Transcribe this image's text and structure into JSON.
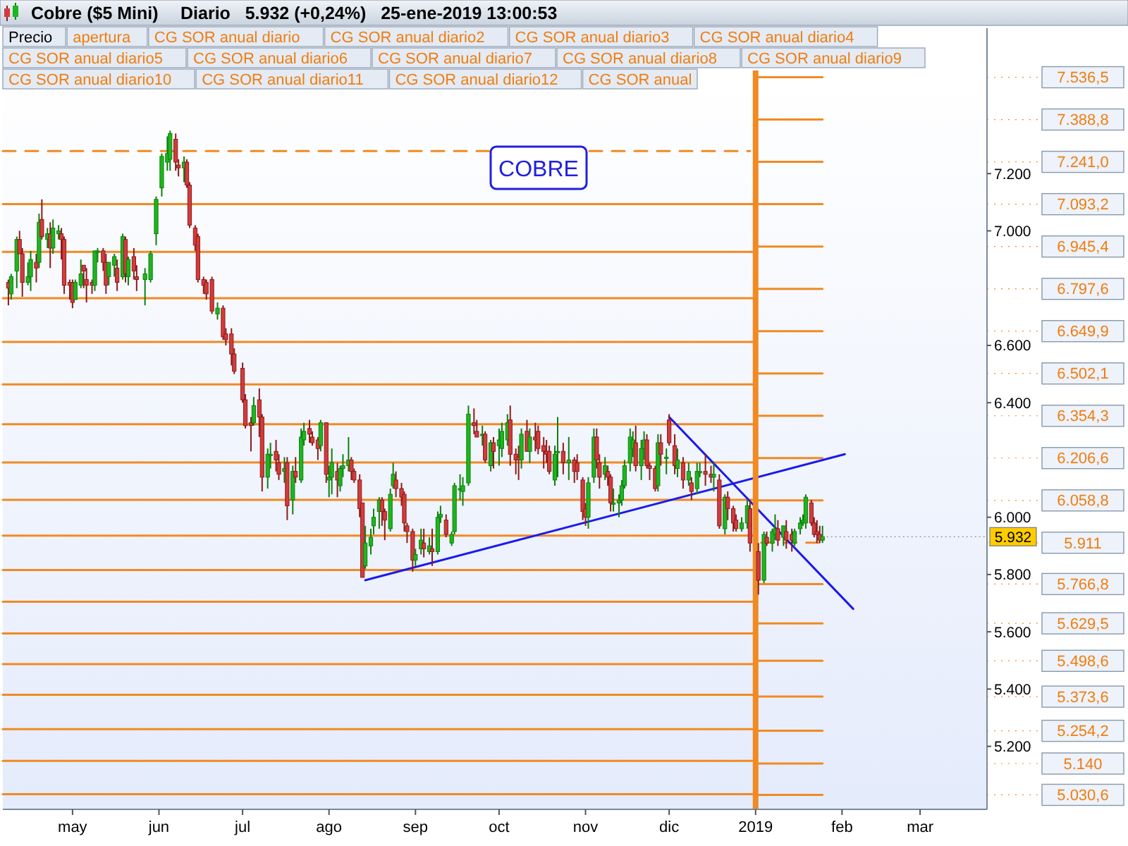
{
  "chart_data": {
    "type": "candlestick",
    "title": "Cobre ($5 Mini)",
    "subtitle": "Diario   5.932 (+0,24%)   25-ene-2019 13:00:53",
    "x": [
      "2018-04-08",
      "2018-04-09",
      "2018-04-11",
      "2018-04-12",
      "2018-04-13",
      "2018-04-15",
      "2018-04-16",
      "2018-04-18",
      "2018-04-19",
      "2018-04-20",
      "2018-04-22",
      "2018-04-23",
      "2018-04-24",
      "2018-04-26",
      "2018-04-27",
      "2018-04-28",
      "2018-04-30",
      "2018-05-01",
      "2018-05-02",
      "2018-05-04",
      "2018-05-05",
      "2018-05-06",
      "2018-05-08",
      "2018-05-09",
      "2018-05-10",
      "2018-05-12",
      "2018-05-13",
      "2018-05-14",
      "2018-05-16",
      "2018-05-17",
      "2018-05-19",
      "2018-05-20",
      "2018-05-21",
      "2018-05-23",
      "2018-05-24",
      "2018-05-27",
      "2018-05-29",
      "2018-05-31",
      "2018-06-02",
      "2018-06-04",
      "2018-06-05",
      "2018-06-07",
      "2018-06-08",
      "2018-06-10",
      "2018-06-11",
      "2018-06-12",
      "2018-06-14",
      "2018-06-15",
      "2018-06-17",
      "2018-06-18",
      "2018-06-20",
      "2018-06-22",
      "2018-06-24",
      "2018-06-25",
      "2018-06-27",
      "2018-06-28",
      "2018-07-01",
      "2018-07-02",
      "2018-07-04",
      "2018-07-05",
      "2018-07-07",
      "2018-07-08",
      "2018-07-10",
      "2018-07-11",
      "2018-07-13",
      "2018-07-14",
      "2018-07-16",
      "2018-07-17",
      "2018-07-19",
      "2018-07-20",
      "2018-07-22",
      "2018-07-23",
      "2018-07-25",
      "2018-07-26",
      "2018-07-28",
      "2018-07-29",
      "2018-07-31",
      "2018-08-01",
      "2018-08-02",
      "2018-08-04",
      "2018-08-05",
      "2018-08-06",
      "2018-08-08",
      "2018-08-09",
      "2018-08-10",
      "2018-08-12",
      "2018-08-13",
      "2018-08-14",
      "2018-08-16",
      "2018-08-17",
      "2018-08-19",
      "2018-08-20",
      "2018-08-21",
      "2018-08-23",
      "2018-08-24",
      "2018-08-25",
      "2018-08-27",
      "2018-08-28",
      "2018-08-29",
      "2018-08-31",
      "2018-09-01",
      "2018-09-03",
      "2018-09-04",
      "2018-09-06",
      "2018-09-07",
      "2018-09-09",
      "2018-09-10",
      "2018-09-12",
      "2018-09-14",
      "2018-09-15",
      "2018-09-17",
      "2018-09-18",
      "2018-09-20",
      "2018-09-22",
      "2018-09-23",
      "2018-09-25",
      "2018-09-26",
      "2018-09-28",
      "2018-09-29",
      "2018-10-01",
      "2018-10-02",
      "2018-10-04",
      "2018-10-05",
      "2018-10-07",
      "2018-10-08",
      "2018-10-09",
      "2018-10-11",
      "2018-10-12",
      "2018-10-14",
      "2018-10-15",
      "2018-10-17",
      "2018-10-18",
      "2018-10-19",
      "2018-10-21",
      "2018-10-22",
      "2018-10-24",
      "2018-10-26",
      "2018-10-28",
      "2018-10-29",
      "2018-10-31",
      "2018-11-01",
      "2018-11-02",
      "2018-11-04",
      "2018-11-05",
      "2018-11-06",
      "2018-11-08",
      "2018-11-09",
      "2018-11-10",
      "2018-11-11",
      "2018-11-13",
      "2018-11-14",
      "2018-11-15",
      "2018-11-17",
      "2018-11-18",
      "2018-11-19",
      "2018-11-21",
      "2018-11-22",
      "2018-11-23",
      "2018-11-24",
      "2018-11-26",
      "2018-11-27",
      "2018-11-28",
      "2018-11-30",
      "2018-12-01",
      "2018-12-03",
      "2018-12-04",
      "2018-12-06",
      "2018-12-08",
      "2018-12-09",
      "2018-12-11",
      "2018-12-12",
      "2018-12-14",
      "2018-12-16",
      "2018-12-17",
      "2018-12-19",
      "2018-12-21",
      "2018-12-22",
      "2018-12-24",
      "2018-12-25",
      "2018-12-27",
      "2018-12-29",
      "2018-12-30",
      "2019-01-02",
      "2019-01-04",
      "2019-01-05",
      "2019-01-07",
      "2019-01-08",
      "2019-01-09",
      "2019-01-11",
      "2019-01-12",
      "2019-01-14",
      "2019-01-15",
      "2019-01-17",
      "2019-01-18",
      "2019-01-19",
      "2019-01-21",
      "2019-01-22",
      "2019-01-23",
      "2019-01-24",
      "2019-01-25"
    ],
    "ohlc": [
      [
        6820,
        6830,
        6740,
        6800
      ],
      [
        6780,
        6850,
        6760,
        6840
      ],
      [
        6860,
        6980,
        6800,
        6970
      ],
      [
        6970,
        7000,
        6920,
        6920
      ],
      [
        6920,
        6940,
        6770,
        6820
      ],
      [
        6820,
        6890,
        6810,
        6840
      ],
      [
        6840,
        6930,
        6790,
        6900
      ],
      [
        6890,
        6920,
        6820,
        6870
      ],
      [
        6890,
        7060,
        6870,
        7030
      ],
      [
        7040,
        7110,
        6970,
        6980
      ],
      [
        6970,
        7010,
        6940,
        6990
      ],
      [
        6990,
        7030,
        6870,
        6940
      ],
      [
        6940,
        7040,
        6920,
        7010
      ],
      [
        6990,
        7020,
        6970,
        7000
      ],
      [
        6990,
        7010,
        6900,
        6970
      ],
      [
        6970,
        6980,
        6780,
        6810
      ],
      [
        6820,
        6830,
        6760,
        6810
      ],
      [
        6820,
        6830,
        6730,
        6750
      ],
      [
        6760,
        6830,
        6760,
        6820
      ],
      [
        6810,
        6900,
        6800,
        6850
      ],
      [
        6880,
        6880,
        6800,
        6860
      ],
      [
        6830,
        6870,
        6750,
        6810
      ],
      [
        6820,
        6830,
        6780,
        6810
      ],
      [
        6810,
        6930,
        6790,
        6930
      ],
      [
        6930,
        6940,
        6890,
        6930
      ],
      [
        6930,
        6940,
        6860,
        6890
      ],
      [
        6890,
        6920,
        6780,
        6810
      ],
      [
        6840,
        6890,
        6810,
        6890
      ],
      [
        6880,
        6920,
        6840,
        6910
      ],
      [
        6870,
        6900,
        6790,
        6820
      ],
      [
        6840,
        6990,
        6830,
        6980
      ],
      [
        6970,
        6980,
        6820,
        6850
      ],
      [
        6840,
        6910,
        6810,
        6900
      ],
      [
        6910,
        6940,
        6830,
        6860
      ],
      [
        6840,
        6880,
        6790,
        6830
      ],
      [
        6830,
        6870,
        6740,
        6850
      ],
      [
        6830,
        6930,
        6820,
        6920
      ],
      [
        6990,
        7120,
        6950,
        7110
      ],
      [
        7150,
        7270,
        7120,
        7260
      ],
      [
        7240,
        7330,
        7210,
        7270
      ],
      [
        7250,
        7350,
        7210,
        7340
      ],
      [
        7320,
        7340,
        7210,
        7240
      ],
      [
        7230,
        7250,
        7190,
        7220
      ],
      [
        7220,
        7260,
        7170,
        7240
      ],
      [
        7240,
        7250,
        7150,
        7160
      ],
      [
        7160,
        7170,
        7010,
        7020
      ],
      [
        7010,
        7020,
        6930,
        6950
      ],
      [
        6980,
        6990,
        6820,
        6830
      ],
      [
        6830,
        6840,
        6780,
        6810
      ],
      [
        6820,
        6830,
        6760,
        6780
      ],
      [
        6830,
        6840,
        6710,
        6720
      ],
      [
        6710,
        6750,
        6690,
        6730
      ],
      [
        6730,
        6740,
        6620,
        6630
      ],
      [
        6640,
        6660,
        6600,
        6620
      ],
      [
        6640,
        6660,
        6530,
        6570
      ],
      [
        6570,
        6590,
        6500,
        6510
      ],
      [
        6520,
        6540,
        6400,
        6410
      ],
      [
        6410,
        6430,
        6310,
        6320
      ],
      [
        6330,
        6350,
        6230,
        6320
      ],
      [
        6330,
        6420,
        6320,
        6390
      ],
      [
        6410,
        6450,
        6280,
        6350
      ],
      [
        6350,
        6360,
        6090,
        6140
      ],
      [
        6140,
        6240,
        6100,
        6220
      ],
      [
        6220,
        6260,
        6170,
        6220
      ],
      [
        6230,
        6270,
        6160,
        6200
      ],
      [
        6190,
        6220,
        6130,
        6150
      ],
      [
        6160,
        6210,
        6120,
        6170
      ],
      [
        6190,
        6210,
        5990,
        6040
      ],
      [
        6060,
        6180,
        6010,
        6160
      ],
      [
        6160,
        6210,
        6120,
        6140
      ],
      [
        6130,
        6310,
        6120,
        6280
      ],
      [
        6270,
        6330,
        6250,
        6300
      ],
      [
        6310,
        6340,
        6260,
        6290
      ],
      [
        6280,
        6300,
        6250,
        6260
      ],
      [
        6270,
        6280,
        6200,
        6240
      ],
      [
        6250,
        6340,
        6230,
        6330
      ],
      [
        6330,
        6330,
        6120,
        6150
      ],
      [
        6130,
        6180,
        6070,
        6140
      ],
      [
        6140,
        6240,
        6080,
        6190
      ],
      [
        6160,
        6190,
        6070,
        6130
      ],
      [
        6110,
        6180,
        6090,
        6170
      ],
      [
        6170,
        6220,
        6140,
        6180
      ],
      [
        6180,
        6280,
        6160,
        6200
      ],
      [
        6200,
        6210,
        6130,
        6160
      ],
      [
        6160,
        6170,
        6120,
        6130
      ],
      [
        6130,
        6150,
        6000,
        6030
      ],
      [
        6050,
        6050,
        5790,
        5790
      ],
      [
        5830,
        5970,
        5820,
        5910
      ],
      [
        5900,
        5960,
        5870,
        5930
      ],
      [
        5970,
        6030,
        5940,
        6000
      ],
      [
        6020,
        6070,
        5960,
        6060
      ],
      [
        6060,
        6070,
        5970,
        6020
      ],
      [
        6020,
        6030,
        5920,
        5990
      ],
      [
        5960,
        6100,
        5950,
        6080
      ],
      [
        6110,
        6190,
        6100,
        6150
      ],
      [
        6130,
        6160,
        6070,
        6100
      ],
      [
        6100,
        6120,
        6040,
        6070
      ],
      [
        6080,
        6090,
        5950,
        5980
      ],
      [
        5970,
        5980,
        5910,
        5950
      ],
      [
        5950,
        5960,
        5810,
        5850
      ],
      [
        5850,
        5890,
        5830,
        5870
      ],
      [
        5890,
        5960,
        5870,
        5920
      ],
      [
        5910,
        5960,
        5860,
        5890
      ],
      [
        5880,
        5930,
        5870,
        5900
      ],
      [
        5890,
        5960,
        5830,
        5880
      ],
      [
        5880,
        6020,
        5870,
        6000
      ],
      [
        6000,
        6040,
        5980,
        6010
      ],
      [
        5990,
        6010,
        5930,
        5940
      ],
      [
        5910,
        5950,
        5900,
        5940
      ],
      [
        5950,
        6120,
        5940,
        6110
      ],
      [
        6100,
        6150,
        6060,
        6100
      ],
      [
        6090,
        6140,
        6040,
        6110
      ],
      [
        6120,
        6390,
        6110,
        6360
      ],
      [
        6330,
        6380,
        6290,
        6320
      ],
      [
        6300,
        6340,
        6280,
        6280
      ],
      [
        6290,
        6320,
        6250,
        6290
      ],
      [
        6290,
        6300,
        6190,
        6200
      ],
      [
        6180,
        6270,
        6160,
        6260
      ],
      [
        6260,
        6280,
        6170,
        6230
      ],
      [
        6250,
        6310,
        6180,
        6270
      ],
      [
        6240,
        6330,
        6210,
        6300
      ],
      [
        6270,
        6360,
        6250,
        6330
      ],
      [
        6340,
        6390,
        6180,
        6220
      ],
      [
        6220,
        6240,
        6150,
        6200
      ],
      [
        6210,
        6250,
        6130,
        6200
      ],
      [
        6200,
        6310,
        6170,
        6290
      ],
      [
        6300,
        6340,
        6230,
        6230
      ],
      [
        6230,
        6310,
        6190,
        6280
      ],
      [
        6280,
        6330,
        6230,
        6270
      ],
      [
        6300,
        6320,
        6220,
        6240
      ],
      [
        6250,
        6280,
        6170,
        6230
      ],
      [
        6230,
        6270,
        6190,
        6220
      ],
      [
        6230,
        6250,
        6150,
        6160
      ],
      [
        6130,
        6250,
        6110,
        6220
      ],
      [
        6230,
        6350,
        6140,
        6230
      ],
      [
        6230,
        6260,
        6150,
        6190
      ],
      [
        6190,
        6280,
        6130,
        6200
      ],
      [
        6200,
        6210,
        6120,
        6160
      ],
      [
        6190,
        6220,
        6130,
        6160
      ],
      [
        6130,
        6140,
        5990,
        6020
      ],
      [
        6030,
        6050,
        5970,
        6000
      ],
      [
        6000,
        6140,
        5960,
        6120
      ],
      [
        6140,
        6310,
        6120,
        6280
      ],
      [
        6280,
        6310,
        6170,
        6200
      ],
      [
        6190,
        6220,
        6100,
        6140
      ],
      [
        6150,
        6210,
        6130,
        6180
      ],
      [
        6160,
        6180,
        6110,
        6140
      ],
      [
        6140,
        6150,
        6020,
        6050
      ],
      [
        6050,
        6100,
        6020,
        6050
      ],
      [
        6050,
        6080,
        6000,
        6060
      ],
      [
        6060,
        6130,
        6040,
        6110
      ],
      [
        6110,
        6200,
        6100,
        6180
      ],
      [
        6190,
        6310,
        6160,
        6280
      ],
      [
        6240,
        6300,
        6210,
        6270
      ],
      [
        6260,
        6320,
        6160,
        6180
      ],
      [
        6180,
        6270,
        6130,
        6240
      ],
      [
        6240,
        6300,
        6200,
        6270
      ],
      [
        6270,
        6290,
        6170,
        6180
      ],
      [
        6180,
        6190,
        6130,
        6170
      ],
      [
        6170,
        6180,
        6090,
        6100
      ],
      [
        6110,
        6290,
        6090,
        6260
      ],
      [
        6260,
        6290,
        6180,
        6220
      ],
      [
        6210,
        6240,
        6150,
        6210
      ],
      [
        6340,
        6360,
        6250,
        6260
      ],
      [
        6250,
        6290,
        6150,
        6180
      ],
      [
        6170,
        6240,
        6140,
        6200
      ],
      [
        6190,
        6210,
        6100,
        6130
      ],
      [
        6130,
        6190,
        6110,
        6160
      ],
      [
        6120,
        6140,
        6060,
        6090
      ],
      [
        6100,
        6190,
        6080,
        6160
      ],
      [
        6160,
        6190,
        6140,
        6160
      ],
      [
        6160,
        6220,
        6110,
        6150
      ],
      [
        6150,
        6180,
        6120,
        6140
      ],
      [
        6140,
        6190,
        6090,
        6150
      ],
      [
        6130,
        6150,
        5960,
        5970
      ],
      [
        5960,
        6080,
        5940,
        6070
      ],
      [
        6070,
        6090,
        5990,
        6030
      ],
      [
        6030,
        6040,
        5950,
        5980
      ],
      [
        5990,
        6010,
        5950,
        5960
      ],
      [
        5960,
        6000,
        5950,
        5980
      ],
      [
        5980,
        6060,
        5960,
        6040
      ],
      [
        6030,
        6060,
        5880,
        5910
      ],
      [
        5880,
        5910,
        5730,
        5780
      ],
      [
        5780,
        5950,
        5770,
        5940
      ],
      [
        5930,
        5950,
        5900,
        5910
      ],
      [
        5910,
        5960,
        5880,
        5950
      ],
      [
        5940,
        6010,
        5920,
        5960
      ],
      [
        5960,
        5990,
        5900,
        5920
      ],
      [
        5930,
        5970,
        5900,
        5970
      ],
      [
        5950,
        5990,
        5890,
        5920
      ],
      [
        5940,
        5960,
        5880,
        5920
      ],
      [
        5910,
        5960,
        5900,
        5950
      ],
      [
        5960,
        6000,
        5940,
        5980
      ],
      [
        5980,
        6010,
        5970,
        5990
      ],
      [
        5980,
        6080,
        5960,
        6070
      ],
      [
        6050,
        6060,
        5970,
        5980
      ],
      [
        5980,
        6000,
        5930,
        5940
      ],
      [
        5950,
        5990,
        5910,
        5940
      ],
      [
        5940,
        5970,
        5910,
        5920
      ],
      [
        5920,
        5970,
        5910,
        5932
      ]
    ],
    "xlim": [
      "2018-04-06",
      "2019-03-25"
    ],
    "xticks": [
      {
        "value": "2018-05-01",
        "label": "may"
      },
      {
        "value": "2018-06-01",
        "label": "jun"
      },
      {
        "value": "2018-07-01",
        "label": "jul"
      },
      {
        "value": "2018-08-01",
        "label": "ago"
      },
      {
        "value": "2018-09-01",
        "label": "sep"
      },
      {
        "value": "2018-10-01",
        "label": "oct"
      },
      {
        "value": "2018-11-01",
        "label": "nov"
      },
      {
        "value": "2018-12-01",
        "label": "dic"
      },
      {
        "value": "2019-01-01",
        "label": "2019"
      },
      {
        "value": "2019-02-01",
        "label": "feb"
      },
      {
        "value": "2019-03-01",
        "label": "mar"
      }
    ],
    "ylim": [
      4980,
      7560
    ],
    "yticks": [
      {
        "value": 7200,
        "label": "7.200"
      },
      {
        "value": 7000,
        "label": "7.000"
      },
      {
        "value": 6600,
        "label": "6.600"
      },
      {
        "value": 6400,
        "label": "6.400"
      },
      {
        "value": 6000,
        "label": "6.000"
      },
      {
        "value": 5800,
        "label": "5.800"
      },
      {
        "value": 5600,
        "label": "5.600"
      },
      {
        "value": 5400,
        "label": "5.400"
      },
      {
        "value": 5200,
        "label": "5.200"
      }
    ],
    "y2lim": [
      4980,
      7560
    ],
    "y2ticks": [
      {
        "value": 7536.5,
        "label": "7.536,5"
      },
      {
        "value": 7388.8,
        "label": "7.388,8"
      },
      {
        "value": 7241,
        "label": "7.241,0"
      },
      {
        "value": 7093.2,
        "label": "7.093,2"
      },
      {
        "value": 6945.4,
        "label": "6.945,4"
      },
      {
        "value": 6797.6,
        "label": "6.797,6"
      },
      {
        "value": 6649.9,
        "label": "6.649,9"
      },
      {
        "value": 6502.1,
        "label": "6.502,1"
      },
      {
        "value": 6354.3,
        "label": "6.354,3"
      },
      {
        "value": 6206.6,
        "label": "6.206,6"
      },
      {
        "value": 6058.8,
        "label": "6.058,8"
      },
      {
        "value": 5911,
        "label": "5.911"
      },
      {
        "value": 5766.8,
        "label": "5.766,8"
      },
      {
        "value": 5629.5,
        "label": "5.629,5"
      },
      {
        "value": 5498.6,
        "label": "5.498,6"
      },
      {
        "value": 5373.6,
        "label": "5.373,6"
      },
      {
        "value": 5254.2,
        "label": "5.254,2"
      },
      {
        "value": 5140,
        "label": "5.140"
      },
      {
        "value": 5030.6,
        "label": "5.030,6"
      }
    ],
    "series": [
      {
        "type": "line",
        "color": "#f08a24",
        "line_style": "dashed",
        "x": [
          "2018-04-06",
          "2018-12-30"
        ],
        "values": [
          7279,
          7279
        ]
      },
      {
        "type": "line",
        "color": "#f08a24",
        "x": [
          "2018-04-06",
          "2018-12-31"
        ],
        "values": [
          6927,
          6927
        ]
      },
      {
        "type": "line",
        "color": "#f08a24",
        "x": [
          "2018-04-06",
          "2018-12-31"
        ],
        "values": [
          6765,
          6765
        ]
      },
      {
        "type": "line",
        "color": "#f08a24",
        "x": [
          "2018-04-06",
          "2018-12-31"
        ],
        "values": [
          6612,
          6612
        ]
      },
      {
        "type": "line",
        "color": "#f08a24",
        "x": [
          "2018-04-06",
          "2018-12-31"
        ],
        "values": [
          6464,
          6464
        ]
      },
      {
        "type": "line",
        "color": "#f08a24",
        "x": [
          "2018-04-06",
          "2018-12-31"
        ],
        "values": [
          6325,
          6325
        ]
      },
      {
        "type": "line",
        "color": "#f08a24",
        "x": [
          "2018-04-06",
          "2018-12-31"
        ],
        "values": [
          6191,
          6191
        ]
      },
      {
        "type": "line",
        "color": "#f08a24",
        "x": [
          "2018-04-06",
          "2018-12-31"
        ],
        "values": [
          6061,
          6061
        ]
      },
      {
        "type": "line",
        "color": "#f08a24",
        "x": [
          "2018-04-06",
          "2018-12-31"
        ],
        "values": [
          5936,
          5936
        ]
      },
      {
        "type": "line",
        "color": "#f08a24",
        "x": [
          "2018-04-06",
          "2018-12-31"
        ],
        "values": [
          5816,
          5816
        ]
      },
      {
        "type": "line",
        "color": "#f08a24",
        "x": [
          "2018-04-06",
          "2018-12-31"
        ],
        "values": [
          5705,
          5705
        ]
      },
      {
        "type": "line",
        "color": "#f08a24",
        "x": [
          "2018-04-06",
          "2018-12-31"
        ],
        "values": [
          5594,
          5594
        ]
      },
      {
        "type": "line",
        "color": "#f08a24",
        "x": [
          "2018-04-06",
          "2018-12-31"
        ],
        "values": [
          5487,
          5487
        ]
      },
      {
        "type": "line",
        "color": "#f08a24",
        "x": [
          "2018-04-06",
          "2018-12-31"
        ],
        "values": [
          5380,
          5380
        ]
      },
      {
        "type": "line",
        "color": "#f08a24",
        "x": [
          "2018-04-06",
          "2018-12-31"
        ],
        "values": [
          5260,
          5260
        ]
      },
      {
        "type": "line",
        "color": "#f08a24",
        "x": [
          "2018-04-06",
          "2018-12-31"
        ],
        "values": [
          5149,
          5149
        ]
      },
      {
        "type": "line",
        "color": "#f08a24",
        "x": [
          "2018-04-06",
          "2018-12-31"
        ],
        "values": [
          5033,
          5033
        ]
      },
      {
        "type": "line",
        "color": "#f08a24",
        "x": [
          "2019-01-01",
          "2019-01-25"
        ],
        "values": [
          7536.5,
          7536.5
        ]
      },
      {
        "type": "line",
        "color": "#f08a24",
        "x": [
          "2019-01-01",
          "2019-01-25"
        ],
        "values": [
          7388.8,
          7388.8
        ]
      },
      {
        "type": "line",
        "color": "#f08a24",
        "x": [
          "2019-01-01",
          "2019-01-25"
        ],
        "values": [
          7241,
          7241
        ]
      },
      {
        "type": "line",
        "color": "#f08a24",
        "x": [
          "2018-04-06",
          "2019-01-25"
        ],
        "values": [
          7093.2,
          7093.2
        ]
      },
      {
        "type": "line",
        "color": "#f08a24",
        "x": [
          "2019-01-01",
          "2019-01-25"
        ],
        "values": [
          6945.4,
          6945.4
        ]
      },
      {
        "type": "line",
        "color": "#f08a24",
        "x": [
          "2019-01-01",
          "2019-01-25"
        ],
        "values": [
          6797.6,
          6797.6
        ]
      },
      {
        "type": "line",
        "color": "#f08a24",
        "x": [
          "2019-01-01",
          "2019-01-25"
        ],
        "values": [
          6649.9,
          6649.9
        ]
      },
      {
        "type": "line",
        "color": "#f08a24",
        "x": [
          "2019-01-01",
          "2019-01-25"
        ],
        "values": [
          6502.1,
          6502.1
        ]
      },
      {
        "type": "line",
        "color": "#f08a24",
        "x": [
          "2019-01-01",
          "2019-01-25"
        ],
        "values": [
          6354.3,
          6354.3
        ]
      },
      {
        "type": "line",
        "color": "#f08a24",
        "x": [
          "2019-01-01",
          "2019-01-25"
        ],
        "values": [
          6206.6,
          6206.6
        ]
      },
      {
        "type": "line",
        "color": "#f08a24",
        "x": [
          "2019-01-01",
          "2019-01-25"
        ],
        "values": [
          6058.8,
          6058.8
        ]
      },
      {
        "type": "line",
        "color": "#f08a24",
        "line_style": "dashed",
        "x": [
          "2019-01-03",
          "2019-01-25"
        ],
        "values": [
          5911,
          5911
        ]
      },
      {
        "type": "line",
        "color": "#f08a24",
        "x": [
          "2019-01-01",
          "2019-01-25"
        ],
        "values": [
          5766.8,
          5766.8
        ]
      },
      {
        "type": "line",
        "color": "#f08a24",
        "x": [
          "2019-01-01",
          "2019-01-25"
        ],
        "values": [
          5629.5,
          5629.5
        ]
      },
      {
        "type": "line",
        "color": "#f08a24",
        "x": [
          "2019-01-01",
          "2019-01-25"
        ],
        "values": [
          5498.6,
          5498.6
        ]
      },
      {
        "type": "line",
        "color": "#f08a24",
        "x": [
          "2019-01-01",
          "2019-01-25"
        ],
        "values": [
          5373.6,
          5373.6
        ]
      },
      {
        "type": "line",
        "color": "#f08a24",
        "x": [
          "2019-01-01",
          "2019-01-25"
        ],
        "values": [
          5254.2,
          5254.2
        ]
      },
      {
        "type": "line",
        "color": "#f08a24",
        "x": [
          "2019-01-01",
          "2019-01-25"
        ],
        "values": [
          5140,
          5140
        ]
      },
      {
        "type": "line",
        "color": "#f08a24",
        "x": [
          "2019-01-01",
          "2019-01-25"
        ],
        "values": [
          5030.6,
          5030.6
        ]
      },
      {
        "type": "line",
        "color": "#1a1aee",
        "x": [
          "2018-08-14",
          "2019-02-02"
        ],
        "values": [
          5780,
          6220
        ]
      },
      {
        "type": "line",
        "color": "#1a1aee",
        "x": [
          "2018-12-01",
          "2019-02-05"
        ],
        "values": [
          6350,
          5680
        ]
      }
    ],
    "ref_lines": [
      {
        "axis": "x",
        "value": "2019-01-01",
        "color": "#f08a24"
      }
    ],
    "annotations": [
      "Precio",
      "apertura",
      "CG SOR anual diario",
      "CG SOR anual diario2",
      "CG SOR anual diario3",
      "CG SOR anual diario4",
      "CG SOR anual diario5",
      "CG SOR anual diario6",
      "CG SOR anual diario7",
      "CG SOR anual diario8",
      "CG SOR anual diario9",
      "CG SOR anual diario10",
      "CG SOR anual diario11",
      "CG SOR anual diario12",
      "CG SOR anual",
      "COBRE",
      {
        "text": "5.932",
        "x": "2019-01-25",
        "y": 5932
      }
    ]
  }
}
